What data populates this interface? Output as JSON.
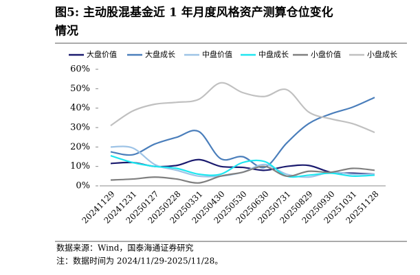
{
  "chart_data": {
    "type": "line",
    "title_line1": "图5:  主动股混基金近 1 年月度风格资产测算仓位变化",
    "title_line2": "情况",
    "categories": [
      "20241129",
      "20241231",
      "20250127",
      "20250228",
      "20250331",
      "20250430",
      "20250530",
      "20250630",
      "20250731",
      "20250829",
      "20250930",
      "20251031",
      "20251128"
    ],
    "series": [
      {
        "name": "大盘价值",
        "color": "#1a1a6e",
        "values": [
          11.5,
          12,
          10,
          10.5,
          13.5,
          10,
          9.5,
          8,
          10,
          10.5,
          7,
          6.5,
          6
        ]
      },
      {
        "name": "大盘成长",
        "color": "#4a7ebb",
        "values": [
          17.5,
          16,
          21.5,
          25,
          28,
          14,
          15,
          9.5,
          22,
          32,
          37,
          40.5,
          45.5
        ]
      },
      {
        "name": "中盘价值",
        "color": "#9dc3e6",
        "values": [
          20,
          19.5,
          11,
          8,
          5,
          5,
          7,
          11,
          6,
          4.5,
          7,
          6,
          6
        ]
      },
      {
        "name": "中盘成长",
        "color": "#1ee6f0",
        "values": [
          15.5,
          12,
          10,
          9,
          6,
          6,
          12,
          12.5,
          5,
          5.5,
          6.5,
          5,
          5.5
        ]
      },
      {
        "name": "小盘价值",
        "color": "#7f7f7f",
        "values": [
          3,
          3.5,
          4.5,
          3.5,
          1.5,
          5,
          7,
          10,
          5,
          7.5,
          7,
          9,
          8
        ]
      },
      {
        "name": "小盘成长",
        "color": "#c0c0c0",
        "values": [
          31,
          38.5,
          42,
          43,
          44.5,
          53,
          48,
          46,
          49.5,
          38,
          34.5,
          32,
          27.5
        ]
      }
    ],
    "ylim": [
      0,
      60
    ],
    "yticks": [
      {
        "value": 0,
        "label": "0%"
      },
      {
        "value": 10,
        "label": "10%"
      },
      {
        "value": 20,
        "label": "20%"
      },
      {
        "value": 30,
        "label": "30%"
      },
      {
        "value": 40,
        "label": "40%"
      },
      {
        "value": 50,
        "label": "50%"
      },
      {
        "value": 60,
        "label": "60%"
      }
    ],
    "source": "数据来源：Wind，国泰海通证券研究",
    "note": "注：数据时间为 2024/11/29-2025/11/28。"
  }
}
